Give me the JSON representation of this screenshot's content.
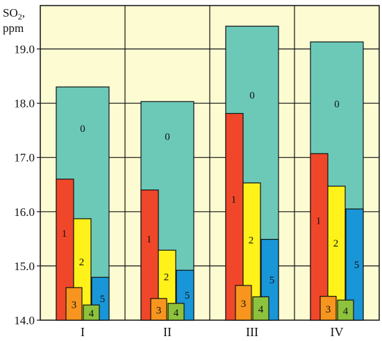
{
  "chart_data": {
    "type": "bar",
    "ylabel": "SO₂, ppm",
    "ylim": [
      14.0,
      19.8
    ],
    "yticks": [
      "14.0",
      "15.0",
      "16.0",
      "17.0",
      "18.0",
      "19.0"
    ],
    "categories": [
      "I",
      "II",
      "III",
      "IV"
    ],
    "grid": true,
    "series": [
      {
        "name": "0",
        "color": "#6cc9b8",
        "values": [
          18.3,
          18.03,
          19.42,
          19.13
        ]
      },
      {
        "name": "1",
        "color": "#f0472a",
        "values": [
          16.6,
          16.4,
          17.81,
          17.07
        ]
      },
      {
        "name": "2",
        "color": "#fff21a",
        "values": [
          15.87,
          15.29,
          16.53,
          16.47
        ]
      },
      {
        "name": "5",
        "color": "#1996d8",
        "values": [
          14.79,
          14.92,
          15.49,
          16.05
        ]
      },
      {
        "name": "3",
        "color": "#f7951e",
        "values": [
          14.6,
          14.4,
          14.64,
          14.44
        ]
      },
      {
        "name": "4",
        "color": "#8dc23d",
        "values": [
          14.28,
          14.31,
          14.43,
          14.37
        ]
      }
    ]
  }
}
